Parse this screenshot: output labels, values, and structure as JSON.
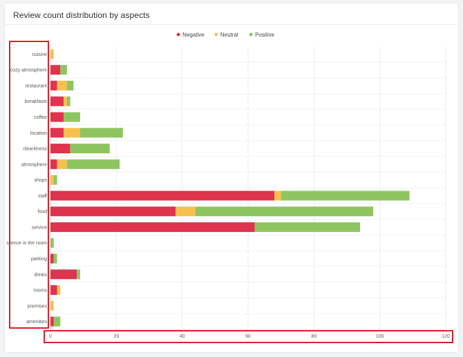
{
  "card": {
    "title": "Review count distribution by aspects"
  },
  "chart_data": {
    "type": "bar",
    "orientation": "horizontal",
    "stacked": true,
    "title": "Review count distribution by aspects",
    "categories": [
      "cuisine",
      "cozy atmosphere",
      "restaurant",
      "breakfasts",
      "coffee",
      "location",
      "cleanliness",
      "atmosphere",
      "shops",
      "staff",
      "food",
      "service",
      "silence in the room",
      "parking",
      "drinks",
      "rooms",
      "premises",
      "amenities"
    ],
    "series": [
      {
        "name": "Negative",
        "color": "#e0334d",
        "values": [
          0,
          3,
          2,
          4,
          4,
          4,
          6,
          2,
          0,
          68,
          38,
          62,
          0,
          1,
          8,
          2,
          0,
          1
        ]
      },
      {
        "name": "Neutral",
        "color": "#f5c04f",
        "values": [
          1,
          0,
          3,
          1,
          0,
          5,
          0,
          3,
          1,
          2,
          6,
          0,
          0,
          0,
          0,
          1,
          1,
          0
        ]
      },
      {
        "name": "Positive",
        "color": "#8fc561",
        "values": [
          0,
          2,
          2,
          1,
          5,
          13,
          12,
          16,
          1,
          39,
          54,
          32,
          1,
          1,
          1,
          0,
          0,
          2
        ]
      }
    ],
    "xlim": [
      0,
      120
    ],
    "xticks": [
      0,
      20,
      40,
      60,
      80,
      100,
      120
    ],
    "grid": true,
    "legend_position": "top-center"
  },
  "annotations": {
    "highlight_color": "#dd1f26"
  }
}
